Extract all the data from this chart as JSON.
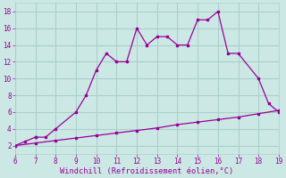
{
  "xlabel": "Windchill (Refroidissement éolien,°C)",
  "line1_x": [
    6,
    6.5,
    7,
    7,
    7.5,
    8,
    9,
    9.5,
    10,
    10.5,
    11,
    11.5,
    12,
    12.5,
    13,
    13.5,
    14,
    14.5,
    15,
    15.5,
    16,
    16.5,
    17,
    18,
    18.5,
    19
  ],
  "line1_y": [
    2,
    2.5,
    3,
    3,
    3,
    4,
    6,
    8,
    11,
    13,
    12,
    12,
    16,
    14,
    15,
    15,
    14,
    14,
    17,
    17,
    18,
    13,
    13,
    10,
    7,
    6
  ],
  "line2_x": [
    6,
    7,
    8,
    9,
    10,
    11,
    12,
    13,
    14,
    15,
    16,
    17,
    18,
    19
  ],
  "line2_y": [
    2,
    2.3,
    2.6,
    2.9,
    3.2,
    3.5,
    3.8,
    4.1,
    4.5,
    4.8,
    5.1,
    5.4,
    5.8,
    6.2
  ],
  "line_color": "#990099",
  "bg_color": "#cce8e4",
  "grid_color": "#aad0cc",
  "text_color": "#990099",
  "xlim": [
    6,
    19
  ],
  "ylim": [
    1,
    19
  ],
  "xticks": [
    6,
    7,
    8,
    9,
    10,
    11,
    12,
    13,
    14,
    15,
    16,
    17,
    18,
    19
  ],
  "yticks": [
    2,
    4,
    6,
    8,
    10,
    12,
    14,
    16,
    18
  ]
}
